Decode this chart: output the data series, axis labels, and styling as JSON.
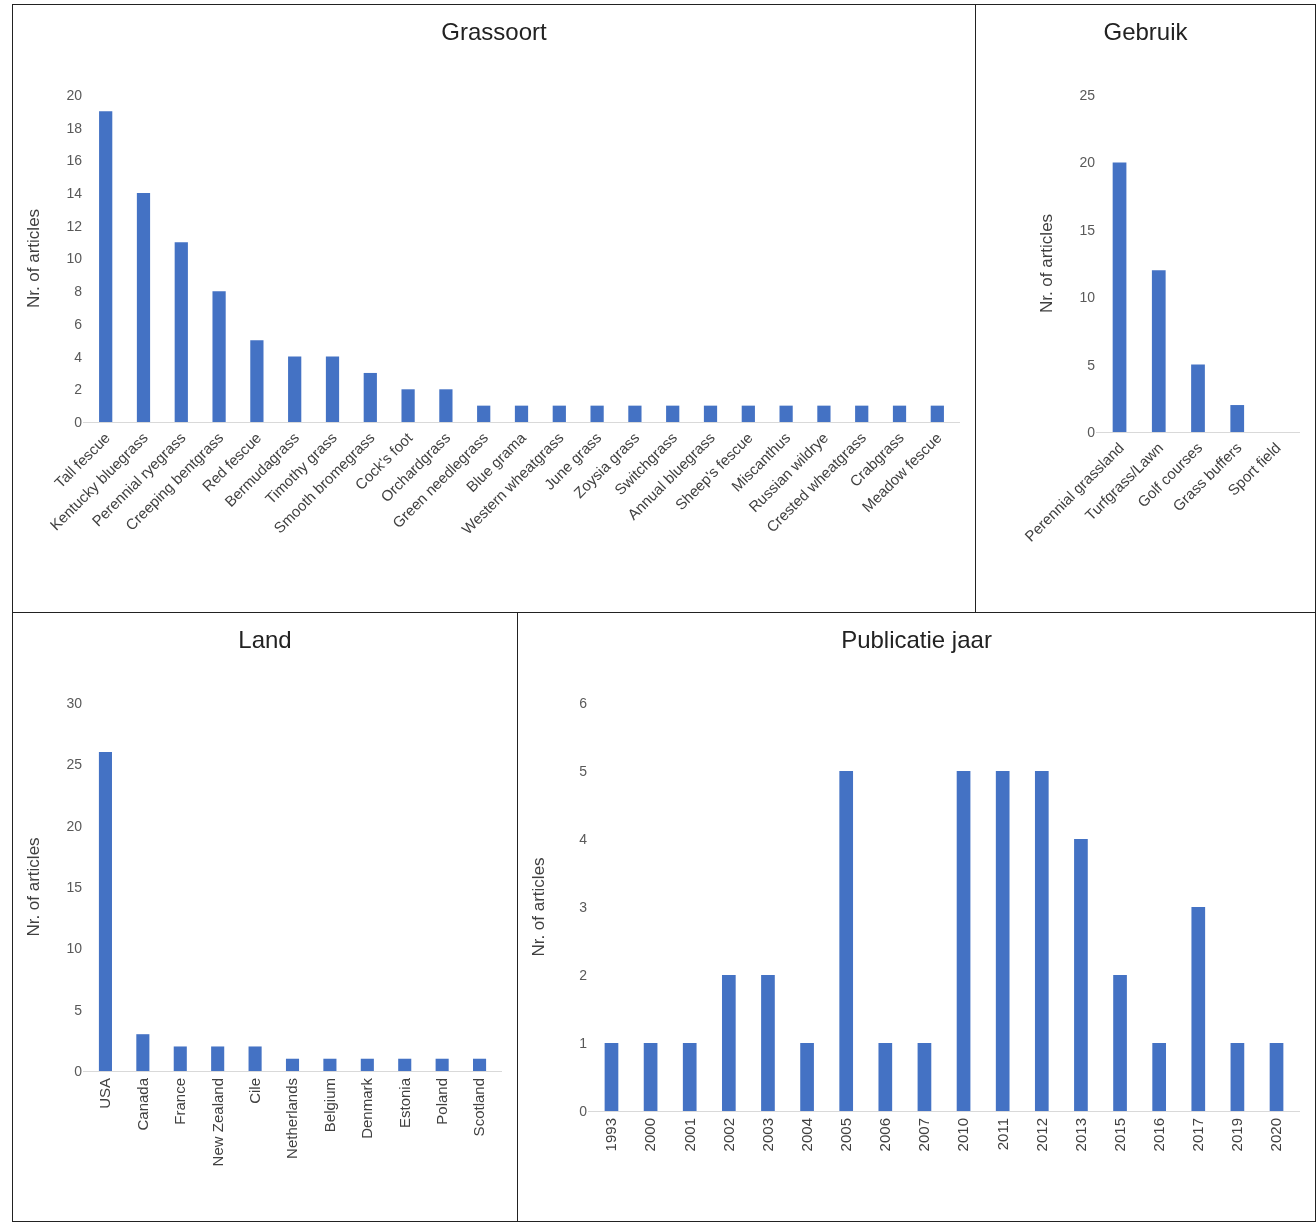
{
  "chart_data": [
    {
      "type": "bar",
      "title": "Grassoort",
      "ylabel": "Nr. of articles",
      "categories": [
        "Tall fescue",
        "Kentucky bluegrass",
        "Perennial ryegrass",
        "Creeping bentgrass",
        "Red fescue",
        "Bermudagrass",
        "Timothy grass",
        "Smooth bromegrass",
        "Cock's foot",
        "Orchardgrass",
        "Green needlegrass",
        "Blue grama",
        "Western wheatgrass",
        "June grass",
        "Zoysia grass",
        "Switchgrass",
        "Annual bluegrass",
        "Sheep's fescue",
        "Miscanthus",
        "Russian wildrye",
        "Crested wheatgrass",
        "Crabgrass",
        "Meadow fescue"
      ],
      "values": [
        19,
        14,
        11,
        8,
        5,
        4,
        4,
        3,
        2,
        2,
        1,
        1,
        1,
        1,
        1,
        1,
        1,
        1,
        1,
        1,
        1,
        1,
        1
      ],
      "color": "#4472c4",
      "ylim": [
        0,
        20
      ],
      "yticks": [
        0,
        2,
        4,
        6,
        8,
        10,
        12,
        14,
        16,
        18,
        20
      ]
    },
    {
      "type": "bar",
      "title": "Gebruik",
      "ylabel": "Nr. of articles",
      "categories": [
        "Perennial grassland",
        "Turfgrass/Lawn",
        "Golf courses",
        "Grass buffers",
        "Sport field"
      ],
      "values": [
        20,
        12,
        5,
        2,
        0
      ],
      "color": "#4472c4",
      "ylim": [
        0,
        25
      ],
      "yticks": [
        0,
        5,
        10,
        15,
        20,
        25
      ]
    },
    {
      "type": "bar",
      "title": "Land",
      "ylabel": "Nr. of articles",
      "categories": [
        "USA",
        "Canada",
        "France",
        "New Zealand",
        "Cile",
        "Netherlands",
        "Belgium",
        "Denmark",
        "Estonia",
        "Poland",
        "Scotland"
      ],
      "values": [
        26,
        3,
        2,
        2,
        2,
        1,
        1,
        1,
        1,
        1,
        1
      ],
      "color": "#4472c4",
      "ylim": [
        0,
        30
      ],
      "yticks": [
        0,
        5,
        10,
        15,
        20,
        25,
        30
      ]
    },
    {
      "type": "bar",
      "title": "Publicatie jaar",
      "ylabel": "Nr. of articles",
      "categories": [
        "1993",
        "2000",
        "2001",
        "2002",
        "2003",
        "2004",
        "2005",
        "2006",
        "2007",
        "2010",
        "2011",
        "2012",
        "2013",
        "2015",
        "2016",
        "2017",
        "2019",
        "2020"
      ],
      "values": [
        1,
        1,
        1,
        2,
        2,
        1,
        5,
        1,
        1,
        5,
        5,
        5,
        4,
        2,
        1,
        3,
        1,
        1
      ],
      "color": "#4472c4",
      "ylim": [
        0,
        6
      ],
      "yticks": [
        0,
        1,
        2,
        3,
        4,
        5,
        6
      ]
    }
  ]
}
